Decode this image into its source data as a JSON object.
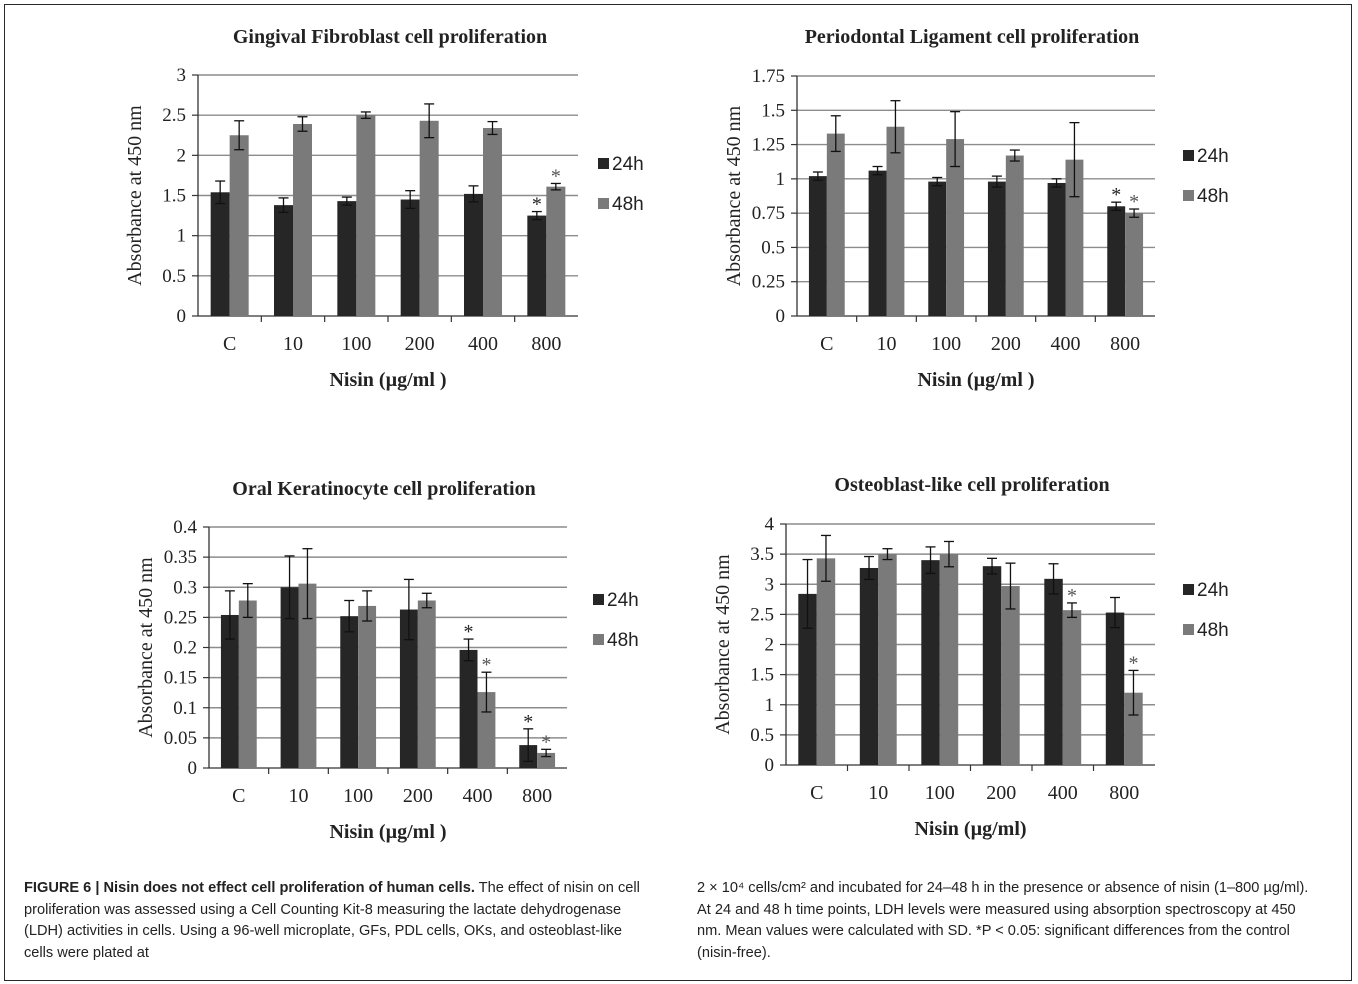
{
  "chart_data": [
    {
      "type": "bar",
      "title": "Gingival Fibroblast cell proliferation",
      "xlabel": "Nisin (µg/ml )",
      "ylabel": "Absorbance at 450 nm",
      "categories": [
        "C",
        "10",
        "100",
        "200",
        "400",
        "800"
      ],
      "ylim": [
        0,
        3
      ],
      "yticks": [
        "0",
        "0.5",
        "1",
        "1.5",
        "2",
        "2.5",
        "3"
      ],
      "grid": true,
      "legend": "right",
      "series": [
        {
          "name": "24h",
          "color": "#262626",
          "values": [
            1.54,
            1.38,
            1.43,
            1.45,
            1.52,
            1.25
          ],
          "errors": [
            0.14,
            0.09,
            0.05,
            0.11,
            0.1,
            0.05
          ],
          "significant": [
            false,
            false,
            false,
            false,
            false,
            true
          ]
        },
        {
          "name": "48h",
          "color": "#7a7a7a",
          "values": [
            2.25,
            2.39,
            2.5,
            2.43,
            2.34,
            1.61
          ],
          "errors": [
            0.18,
            0.09,
            0.04,
            0.21,
            0.08,
            0.04
          ],
          "significant": [
            false,
            false,
            false,
            false,
            false,
            true
          ]
        }
      ]
    },
    {
      "type": "bar",
      "title": "Periodontal Ligament cell proliferation",
      "xlabel": "Nisin (µg/ml )",
      "ylabel": "Absorbance at 450 nm",
      "categories": [
        "C",
        "10",
        "100",
        "200",
        "400",
        "800"
      ],
      "ylim": [
        0,
        1.75
      ],
      "yticks": [
        "0",
        "0.25",
        "0.5",
        "0.75",
        "1",
        "1.25",
        "1.5",
        "1.75"
      ],
      "grid": true,
      "legend": "right",
      "series": [
        {
          "name": "24h",
          "color": "#262626",
          "values": [
            1.02,
            1.06,
            0.98,
            0.98,
            0.97,
            0.8
          ],
          "errors": [
            0.03,
            0.03,
            0.03,
            0.04,
            0.03,
            0.03
          ],
          "significant": [
            false,
            false,
            false,
            false,
            false,
            true
          ]
        },
        {
          "name": "48h",
          "color": "#7a7a7a",
          "values": [
            1.33,
            1.38,
            1.29,
            1.17,
            1.14,
            0.75
          ],
          "errors": [
            0.13,
            0.19,
            0.2,
            0.04,
            0.27,
            0.03
          ],
          "significant": [
            false,
            false,
            false,
            false,
            false,
            true
          ]
        }
      ]
    },
    {
      "type": "bar",
      "title": "Oral Keratinocyte cell proliferation",
      "xlabel": "Nisin (µg/ml )",
      "ylabel": "Absorbance at 450 nm",
      "categories": [
        "C",
        "10",
        "100",
        "200",
        "400",
        "800"
      ],
      "ylim": [
        0,
        0.4
      ],
      "yticks": [
        "0",
        "0.05",
        "0.1",
        "0.15",
        "0.2",
        "0.25",
        "0.3",
        "0.35",
        "0.4"
      ],
      "grid": true,
      "legend": "right",
      "series": [
        {
          "name": "24h",
          "color": "#262626",
          "values": [
            0.254,
            0.3,
            0.252,
            0.263,
            0.196,
            0.038
          ],
          "errors": [
            0.04,
            0.052,
            0.026,
            0.05,
            0.018,
            0.027
          ],
          "significant": [
            false,
            false,
            false,
            false,
            true,
            true
          ]
        },
        {
          "name": "48h",
          "color": "#7a7a7a",
          "values": [
            0.278,
            0.306,
            0.269,
            0.278,
            0.126,
            0.025
          ],
          "errors": [
            0.028,
            0.058,
            0.025,
            0.012,
            0.033,
            0.006
          ],
          "significant": [
            false,
            false,
            false,
            false,
            true,
            true
          ]
        }
      ]
    },
    {
      "type": "bar",
      "title": "Osteoblast-like cell proliferation",
      "xlabel": "Nisin (µg/ml)",
      "ylabel": "Absorbance at 450 nm",
      "categories": [
        "C",
        "10",
        "100",
        "200",
        "400",
        "800"
      ],
      "ylim": [
        0,
        4
      ],
      "yticks": [
        "0",
        "0.5",
        "1",
        "1.5",
        "2",
        "2.5",
        "3",
        "3.5",
        "4"
      ],
      "grid": true,
      "legend": "right",
      "series": [
        {
          "name": "24h",
          "color": "#262626",
          "values": [
            2.84,
            3.27,
            3.4,
            3.3,
            3.09,
            2.53
          ],
          "errors": [
            0.57,
            0.19,
            0.22,
            0.13,
            0.25,
            0.25
          ],
          "significant": [
            false,
            false,
            false,
            false,
            false,
            false
          ]
        },
        {
          "name": "48h",
          "color": "#7a7a7a",
          "values": [
            3.43,
            3.5,
            3.5,
            2.97,
            2.57,
            1.2
          ],
          "errors": [
            0.38,
            0.09,
            0.21,
            0.38,
            0.12,
            0.37
          ],
          "significant": [
            false,
            false,
            false,
            false,
            true,
            true
          ]
        }
      ]
    }
  ],
  "marker": "*",
  "caption": {
    "bold": "FIGURE 6 | Nisin does not effect cell proliferation of human cells.",
    "left_text": " The effect of nisin on cell proliferation was assessed using a Cell Counting Kit-8 measuring the lactate dehydrogenase (LDH) activities in cells. Using a 96-well microplate, GFs, PDL cells, OKs, and osteoblast-like cells were plated at",
    "right_text": "2 × 10⁴ cells/cm² and incubated for 24–48 h in the presence or absence of nisin (1–800 µg/ml). At 24 and 48 h time points, LDH levels were measured using absorption spectroscopy at 450 nm. Mean values were calculated with SD. *P < 0.05: significant differences from the control (nisin-free)."
  }
}
